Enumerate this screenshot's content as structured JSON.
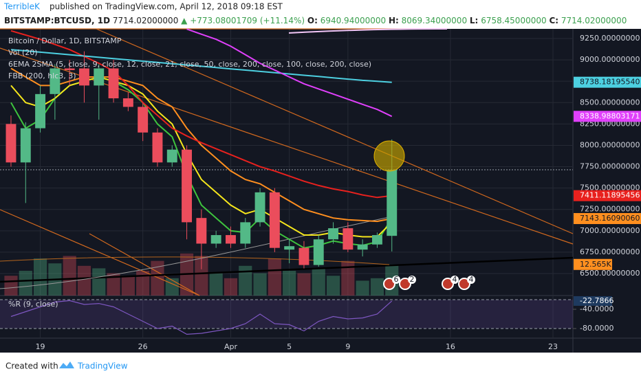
{
  "header": {
    "author": "TerribleK",
    "published": "published on TradingView.com, April 12, 2018 09:18 EST",
    "symbol": "BITSTAMP:BTCUSD, 1D",
    "price": "7714.02000000",
    "change": "▲ +773.08001709 (+11.14%)",
    "ohlc": [
      {
        "label": "O:",
        "value": "6940.94000000"
      },
      {
        "label": "H:",
        "value": "8069.34000000"
      },
      {
        "label": "L:",
        "value": "6758.45000000"
      },
      {
        "label": "C:",
        "value": "7714.02000000"
      }
    ]
  },
  "chart_data": [
    {
      "type": "candlestick",
      "legend": [
        "Bitcoin / Dollar, 1D, BITSTAMP",
        "Vol (20)",
        "6EMA 2SMA (5, close, 9, close, 12, close, 21, close, 50, close, 200, close, 100, close, 200, close)",
        "FBB (200, hlc3, 3)"
      ],
      "categories": [
        null,
        null,
        "19",
        null,
        null,
        null,
        null,
        null,
        null,
        "26",
        null,
        null,
        null,
        null,
        null,
        "Apr",
        null,
        null,
        null,
        "5",
        null,
        null,
        null,
        "9",
        null,
        null,
        null
      ],
      "open": [
        8250,
        7800,
        8200,
        8600,
        8900,
        8900,
        8700,
        8900,
        8550,
        8450,
        8150,
        7800,
        7950,
        7150,
        6850,
        6950,
        6850,
        7100,
        7450,
        6780,
        6800,
        6600,
        6900,
        7030,
        6780,
        6840,
        6940.94
      ],
      "high": [
        8350,
        8270,
        8700,
        8950,
        9000,
        9100,
        8950,
        9000,
        8620,
        8500,
        8200,
        8000,
        8000,
        7250,
        7000,
        7050,
        7150,
        7500,
        7500,
        6900,
        6880,
        6950,
        7100,
        7100,
        6900,
        6980,
        8069.34
      ],
      "low": [
        7750,
        7325,
        8150,
        8300,
        8700,
        8500,
        8300,
        8500,
        8400,
        8050,
        7750,
        7750,
        6900,
        6550,
        6800,
        6800,
        6800,
        7050,
        6750,
        6620,
        6560,
        6580,
        6850,
        6750,
        6700,
        6800,
        6758.45
      ],
      "close": [
        7800,
        8200,
        8600,
        8900,
        8880,
        8700,
        8900,
        8550,
        8450,
        8150,
        7800,
        7950,
        7100,
        6850,
        6950,
        6850,
        7100,
        7450,
        6800,
        6820,
        6600,
        6900,
        7030,
        6780,
        6840,
        6950,
        7714.02
      ],
      "up_color": "#53b987",
      "down_color": "#eb4d5c",
      "volume": [
        8,
        10,
        15,
        13,
        16,
        12,
        11,
        9,
        8,
        10,
        14,
        7,
        17,
        16,
        9,
        7,
        12,
        9,
        15,
        10,
        9,
        11,
        8,
        14,
        6,
        7,
        12.565
      ],
      "series": [
        {
          "color": "#3ec43e",
          "values": [
            8500,
            8200,
            8300,
            8550,
            8700,
            8750,
            8800,
            8750,
            8650,
            8500,
            8250,
            8100,
            7650,
            7300,
            7150,
            7000,
            6980,
            7150,
            7000,
            6900,
            6800,
            6830,
            6880,
            6850,
            6830,
            6870,
            7150
          ]
        },
        {
          "color": "#f5e61c",
          "values": [
            8700,
            8500,
            8450,
            8550,
            8700,
            8750,
            8800,
            8750,
            8700,
            8600,
            8400,
            8250,
            7900,
            7600,
            7450,
            7300,
            7200,
            7250,
            7150,
            7050,
            6950,
            6950,
            6980,
            6950,
            6930,
            6930,
            7100
          ]
        },
        {
          "color": "#ff8f1f",
          "values": [
            8900,
            8800,
            8700,
            8700,
            8750,
            8800,
            8800,
            8800,
            8750,
            8700,
            8550,
            8450,
            8200,
            8000,
            7850,
            7700,
            7600,
            7550,
            7450,
            7350,
            7250,
            7200,
            7150,
            7130,
            7120,
            7110,
            7143.1609006
          ]
        },
        {
          "color": "#e8211e",
          "values": [
            9340,
            9290,
            9240,
            9180,
            9120,
            9040,
            8960,
            8870,
            8700,
            8500,
            8350,
            8200,
            8110,
            8030,
            7960,
            7890,
            7820,
            7750,
            7700,
            7640,
            7580,
            7530,
            7490,
            7460,
            7420,
            7390,
            7411.11895456
          ]
        },
        {
          "color": "#4dd0e1",
          "values": [
            9120,
            9105,
            9090,
            9075,
            9060,
            9045,
            9030,
            9015,
            9000,
            8985,
            8970,
            8955,
            8940,
            8925,
            8910,
            8895,
            8880,
            8865,
            8850,
            8835,
            8820,
            8805,
            8790,
            8775,
            8760,
            8750,
            8738.1819554
          ]
        },
        {
          "color": "#e040fb",
          "values": [
            null,
            null,
            null,
            null,
            null,
            null,
            null,
            null,
            null,
            null,
            null,
            null,
            9360,
            9300,
            9240,
            9160,
            9060,
            8960,
            8880,
            8800,
            8720,
            8660,
            8600,
            8540,
            8480,
            8420,
            8338.98803171
          ]
        }
      ],
      "price_tags": [
        {
          "label": "8738.18195540",
          "value": 8738.1819554,
          "color": "#4dd0e1"
        },
        {
          "label": "8338.98803171",
          "value": 8338.98803171,
          "color": "#e040fb"
        },
        {
          "label": "7411.11895456",
          "value": 7411.11895456,
          "color": "#e8211e"
        },
        {
          "label": "7143.16090060",
          "value": 7143.1609006,
          "color": "#ff8f1f"
        }
      ],
      "volume_tag": "12.565K",
      "last_price": 7714.02,
      "events": [
        "6",
        "2",
        "4",
        "4"
      ],
      "ylim": [
        6242.7,
        9362.6
      ],
      "yticks": [
        {
          "value": 9250,
          "label": "9250.00000000"
        },
        {
          "value": 9000,
          "label": "9000.00000000"
        },
        {
          "value": 8750,
          "label": "8750.00000000"
        },
        {
          "value": 8500,
          "label": "8500.00000000"
        },
        {
          "value": 8250,
          "label": "8250.00000000"
        },
        {
          "value": 8000,
          "label": "8000.00000000"
        },
        {
          "value": 7750,
          "label": "7750.00000000"
        },
        {
          "value": 7500,
          "label": "7500.00000000"
        },
        {
          "value": 7250,
          "label": "7250.00000000"
        },
        {
          "value": 7000,
          "label": "7000.00000000"
        },
        {
          "value": 6750,
          "label": "6750.00000000"
        },
        {
          "value": 6500,
          "label": "6500.00000000"
        }
      ],
      "xlim": [
        -0.75,
        38.36
      ],
      "xticks": [
        {
          "value": 2,
          "label": "19"
        },
        {
          "value": 9,
          "label": "26"
        },
        {
          "value": 15,
          "label": "Apr"
        },
        {
          "value": 19,
          "label": "5"
        },
        {
          "value": 23,
          "label": "9"
        },
        {
          "value": 30,
          "label": "16"
        },
        {
          "value": 37,
          "label": "23"
        }
      ],
      "grid": true
    },
    {
      "type": "line",
      "title": "%R (9, close)",
      "color": "#7e57c2",
      "values": [
        -55,
        -45,
        -35,
        -25,
        -22,
        -30,
        -28,
        -35,
        -50,
        -65,
        -80,
        -75,
        -92,
        -90,
        -85,
        -80,
        -70,
        -50,
        -70,
        -72,
        -85,
        -65,
        -55,
        -60,
        -58,
        -50,
        -22.7866
      ],
      "levels": [
        -20,
        -80
      ],
      "ylim": [
        -100,
        -14.3
      ],
      "yticks": [
        {
          "value": -40,
          "label": "-40.0000"
        },
        {
          "value": -80,
          "label": "-80.0000"
        }
      ]
    }
  ],
  "footer": {
    "created_with": "Created with",
    "brand": "TradingView"
  }
}
